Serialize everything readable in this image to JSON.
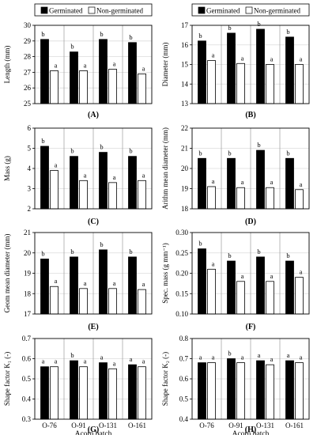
{
  "legend": {
    "series": [
      "Germinated",
      "Non-germinated"
    ]
  },
  "colors": {
    "germinated": "#000000",
    "non_germinated": "#ffffff",
    "border": "#000000"
  },
  "chart_data": [
    {
      "type": "bar",
      "panel": "(A)",
      "ylabel": "Length (mm)",
      "ylim": [
        25,
        30
      ],
      "yticks": [
        "25",
        "26",
        "27",
        "28",
        "29",
        "30"
      ],
      "categories": [
        "O-76",
        "O-91",
        "O-131",
        "O-161"
      ],
      "series": [
        {
          "name": "Germinated",
          "values": [
            29.1,
            28.3,
            29.1,
            28.9
          ],
          "labels": [
            "b",
            "b",
            "b",
            "b"
          ]
        },
        {
          "name": "Non-germinated",
          "values": [
            27.1,
            27.1,
            27.2,
            26.9
          ],
          "labels": [
            "a",
            "a",
            "a",
            "a"
          ]
        }
      ],
      "show_xticks": false,
      "xlabel": "",
      "legend": "top"
    },
    {
      "type": "bar",
      "panel": "(B)",
      "ylabel": "Diameter (mm)",
      "ylim": [
        13,
        17
      ],
      "yticks": [
        "13",
        "14",
        "15",
        "16",
        "17"
      ],
      "categories": [
        "O-76",
        "O-91",
        "O-131",
        "O-161"
      ],
      "series": [
        {
          "name": "Germinated",
          "values": [
            16.2,
            16.6,
            16.8,
            16.4
          ],
          "labels": [
            "b",
            "b",
            "b",
            "b"
          ]
        },
        {
          "name": "Non-germinated",
          "values": [
            15.2,
            15.05,
            15.0,
            15.0
          ],
          "labels": [
            "a",
            "a",
            "a",
            "a"
          ]
        }
      ],
      "show_xticks": false,
      "xlabel": "",
      "legend": "top"
    },
    {
      "type": "bar",
      "panel": "(C)",
      "ylabel": "Mass (g)",
      "ylim": [
        2,
        6
      ],
      "yticks": [
        "2",
        "3",
        "4",
        "5",
        "6"
      ],
      "categories": [
        "O-76",
        "O-91",
        "O-131",
        "O-161"
      ],
      "series": [
        {
          "name": "Germinated",
          "values": [
            5.1,
            4.6,
            4.8,
            4.6
          ],
          "labels": [
            "b",
            "b",
            "b",
            "b"
          ]
        },
        {
          "name": "Non-germinated",
          "values": [
            3.9,
            3.4,
            3.3,
            3.4
          ],
          "labels": [
            "a",
            "a",
            "a",
            "a"
          ]
        }
      ],
      "show_xticks": false,
      "xlabel": ""
    },
    {
      "type": "bar",
      "panel": "(D)",
      "ylabel": "Arithm mean diameter (mm)",
      "ylim": [
        18,
        22
      ],
      "yticks": [
        "18",
        "19",
        "20",
        "21",
        "22"
      ],
      "categories": [
        "O-76",
        "O-91",
        "O-131",
        "O-161"
      ],
      "series": [
        {
          "name": "Germinated",
          "values": [
            20.5,
            20.5,
            20.9,
            20.5
          ],
          "labels": [
            "b",
            "b",
            "b",
            "b"
          ]
        },
        {
          "name": "Non-germinated",
          "values": [
            19.1,
            19.05,
            19.05,
            18.95
          ],
          "labels": [
            "a",
            "a",
            "a",
            "a"
          ]
        }
      ],
      "show_xticks": false,
      "xlabel": ""
    },
    {
      "type": "bar",
      "panel": "(E)",
      "ylabel": "Geom mean diameter (mm)",
      "ylim": [
        17,
        21
      ],
      "yticks": [
        "17",
        "18",
        "19",
        "20",
        "21"
      ],
      "categories": [
        "O-76",
        "O-91",
        "O-131",
        "O-161"
      ],
      "series": [
        {
          "name": "Germinated",
          "values": [
            19.7,
            19.8,
            20.15,
            19.8
          ],
          "labels": [
            "b",
            "b",
            "b",
            "b"
          ]
        },
        {
          "name": "Non-germinated",
          "values": [
            18.35,
            18.25,
            18.25,
            18.2
          ],
          "labels": [
            "a",
            "a",
            "a",
            "a"
          ]
        }
      ],
      "show_xticks": false,
      "xlabel": ""
    },
    {
      "type": "bar",
      "panel": "(F)",
      "ylabel": "Spec. mass (g mm⁻¹)",
      "ylim": [
        0.1,
        0.3
      ],
      "yticks": [
        "0.10",
        "0.15",
        "0.20",
        "0.25",
        "0.30"
      ],
      "categories": [
        "O-76",
        "O-91",
        "O-131",
        "O-161"
      ],
      "series": [
        {
          "name": "Germinated",
          "values": [
            0.26,
            0.23,
            0.24,
            0.23
          ],
          "labels": [
            "b",
            "b",
            "b",
            "b"
          ]
        },
        {
          "name": "Non-germinated",
          "values": [
            0.21,
            0.18,
            0.18,
            0.19
          ],
          "labels": [
            "a",
            "a",
            "a",
            "a"
          ]
        }
      ],
      "show_xticks": false,
      "xlabel": ""
    },
    {
      "type": "bar",
      "panel": "(G)",
      "ylabel": "Shape factor K₁ (-)",
      "ylim": [
        0.3,
        0.7
      ],
      "yticks": [
        "0.3",
        "0.4",
        "0.5",
        "0.6",
        "0.7"
      ],
      "categories": [
        "O-76",
        "O-91",
        "O-131",
        "O-161"
      ],
      "series": [
        {
          "name": "Germinated",
          "values": [
            0.56,
            0.59,
            0.58,
            0.57
          ],
          "labels": [
            "a",
            "b",
            "a",
            "a"
          ]
        },
        {
          "name": "Non-germinated",
          "values": [
            0.56,
            0.56,
            0.55,
            0.56
          ],
          "labels": [
            "a",
            "a",
            "a",
            "a"
          ]
        }
      ],
      "show_xticks": true,
      "xlabel": "Acorn batch"
    },
    {
      "type": "bar",
      "panel": "(H)",
      "ylabel": "Shape factor K₂ (-)",
      "ylim": [
        0.4,
        0.8
      ],
      "yticks": [
        "0.4",
        "0.5",
        "0.6",
        "0.7",
        "0.8"
      ],
      "categories": [
        "O-76",
        "O-91",
        "O-131",
        "O-161"
      ],
      "series": [
        {
          "name": "Germinated",
          "values": [
            0.68,
            0.7,
            0.69,
            0.69
          ],
          "labels": [
            "a",
            "b",
            "a",
            "a"
          ]
        },
        {
          "name": "Non-germinated",
          "values": [
            0.68,
            0.68,
            0.67,
            0.68
          ],
          "labels": [
            "a",
            "a",
            "a",
            "a"
          ]
        }
      ],
      "show_xticks": true,
      "xlabel": "Acorn batch"
    }
  ]
}
